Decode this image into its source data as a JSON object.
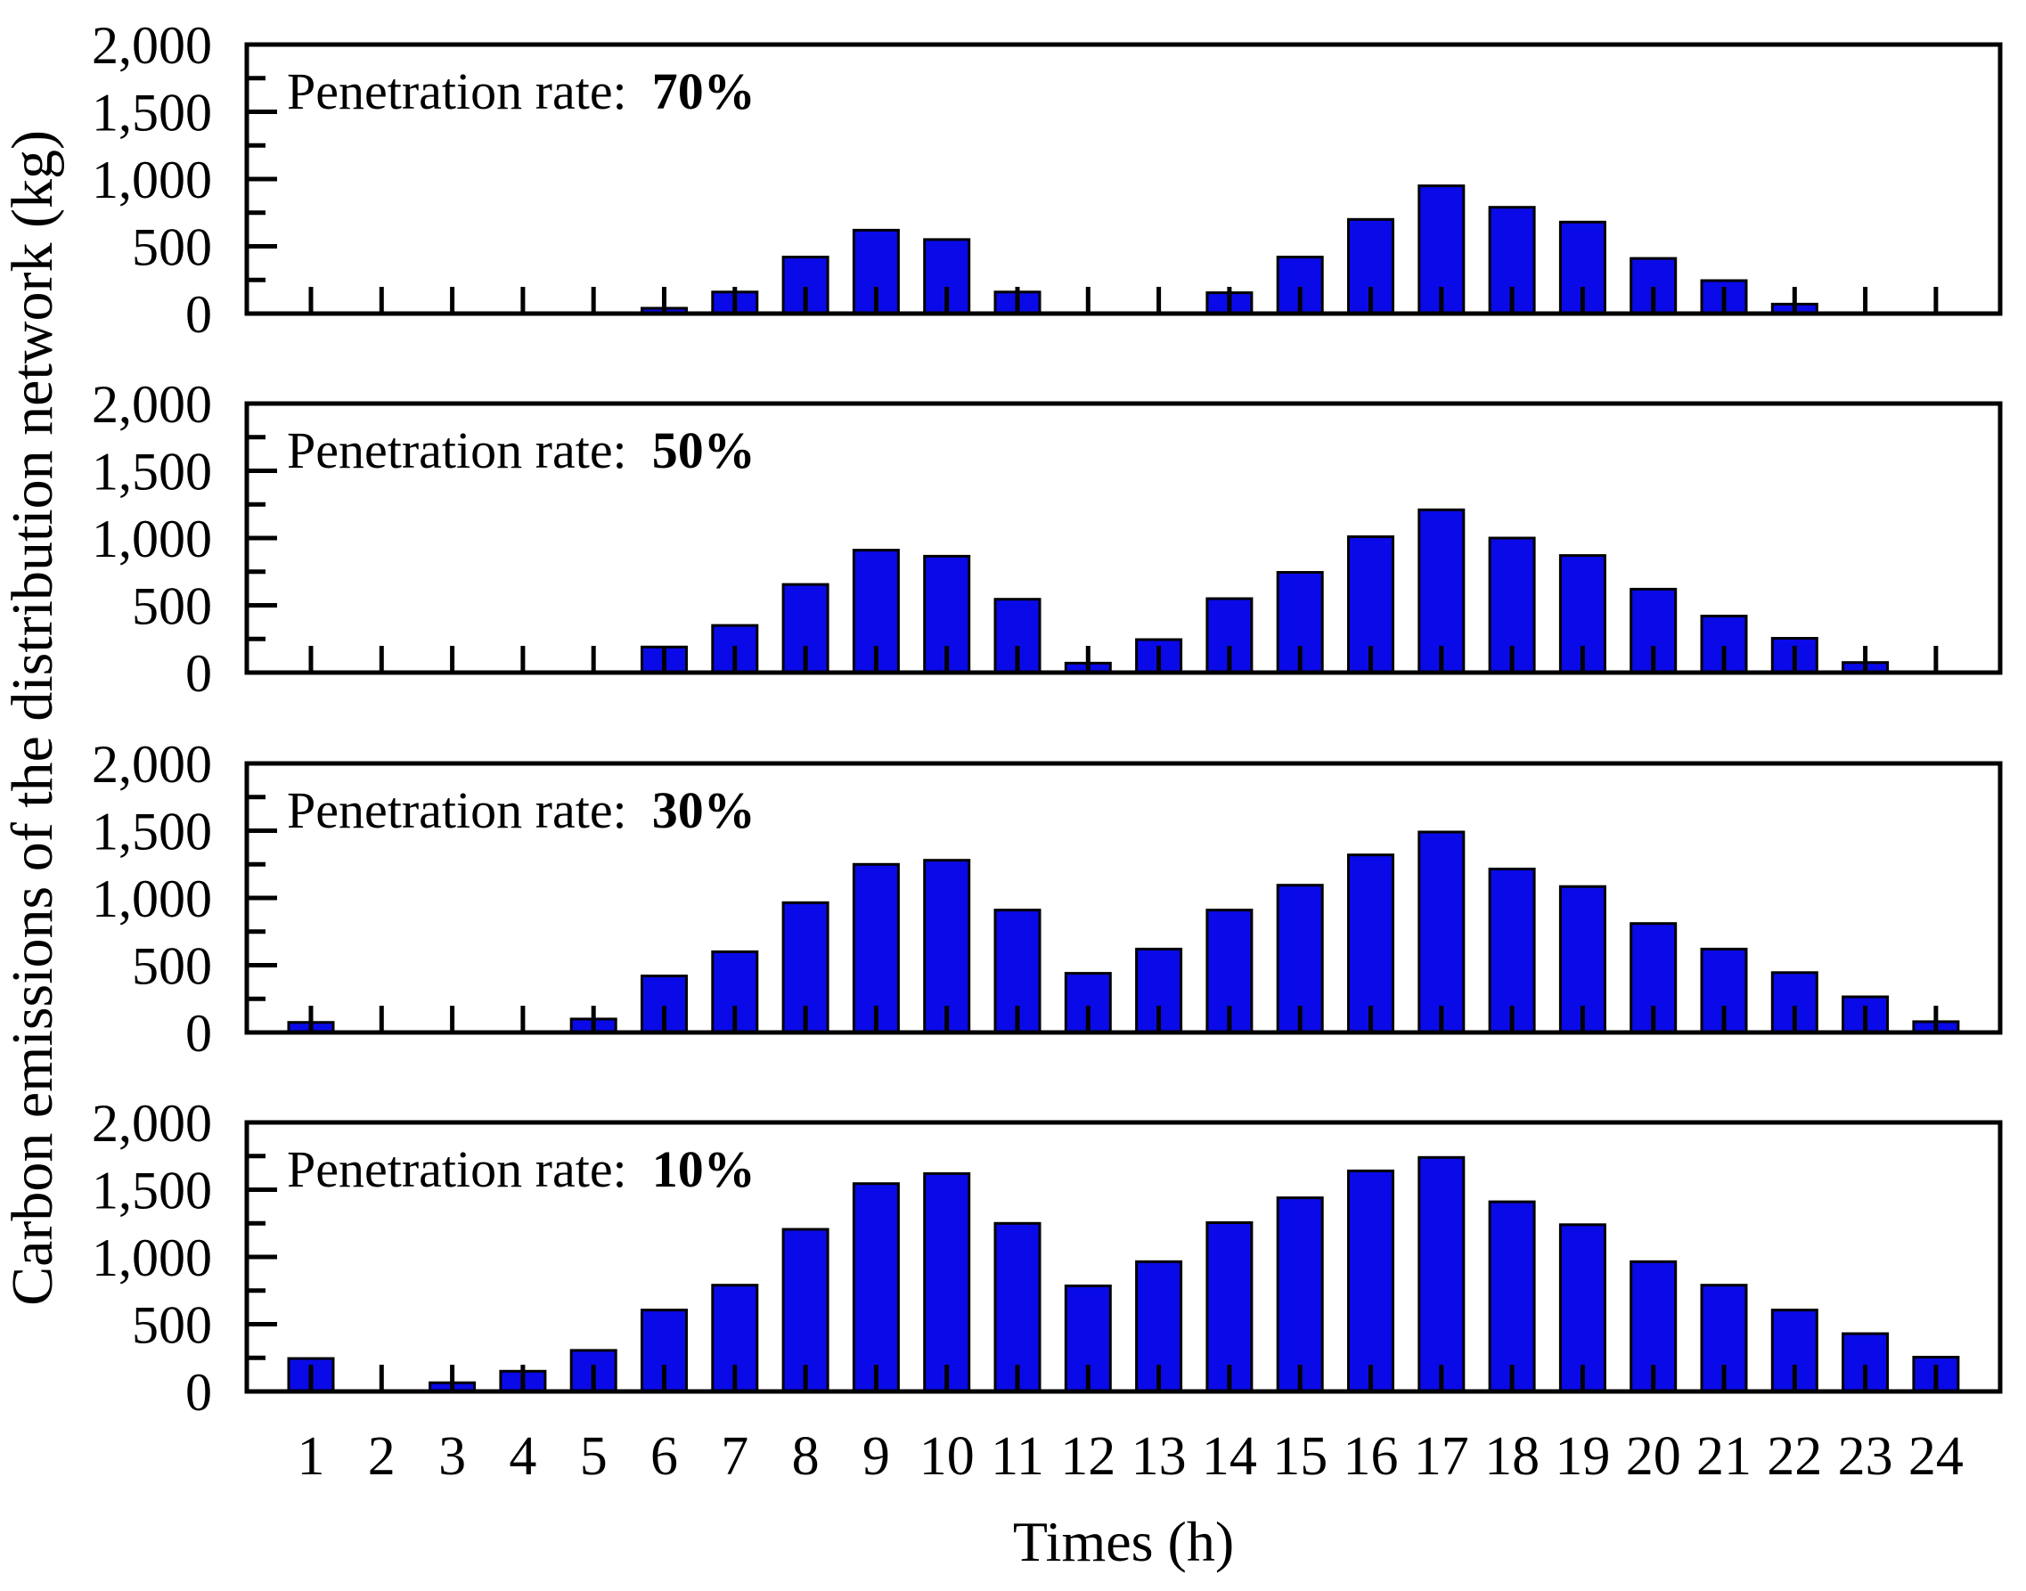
{
  "figure": {
    "y_axis_title": "Carbon emissions of the distribution network (kg)",
    "x_axis_title": "Times (h)",
    "annotation_prefix": "Penetration rate:",
    "bar_color": "#0a0ae8",
    "bar_edge_color": "#000000",
    "axis_color": "#000000",
    "y_tick_labels": [
      "0",
      "500",
      "1,000",
      "1,500",
      "2,000"
    ]
  },
  "chart_data": [
    {
      "type": "bar",
      "annotation_value": "70%",
      "categories": [
        1,
        2,
        3,
        4,
        5,
        6,
        7,
        8,
        9,
        10,
        11,
        12,
        13,
        14,
        15,
        16,
        17,
        18,
        19,
        20,
        21,
        22,
        23,
        24
      ],
      "values": [
        0,
        0,
        0,
        0,
        0,
        40,
        160,
        420,
        620,
        550,
        160,
        0,
        0,
        155,
        420,
        700,
        950,
        790,
        680,
        410,
        245,
        70,
        0,
        0
      ],
      "title": "Penetration rate: 70%",
      "xlabel": "Times (h)",
      "ylabel": "Carbon emissions of the distribution network (kg)",
      "ylim": [
        0,
        2000
      ],
      "yticks": [
        0,
        500,
        1000,
        1500,
        2000
      ],
      "minor_yticks": [
        250,
        750,
        1250,
        1750
      ],
      "grid": false,
      "legend": null
    },
    {
      "type": "bar",
      "annotation_value": "50%",
      "categories": [
        1,
        2,
        3,
        4,
        5,
        6,
        7,
        8,
        9,
        10,
        11,
        12,
        13,
        14,
        15,
        16,
        17,
        18,
        19,
        20,
        21,
        22,
        23,
        24
      ],
      "values": [
        0,
        0,
        0,
        0,
        0,
        190,
        350,
        655,
        910,
        865,
        545,
        70,
        245,
        550,
        745,
        1010,
        1210,
        1000,
        870,
        620,
        420,
        255,
        75,
        0
      ],
      "title": "Penetration rate: 50%",
      "xlabel": "Times (h)",
      "ylabel": "Carbon emissions of the distribution network (kg)",
      "ylim": [
        0,
        2000
      ],
      "yticks": [
        0,
        500,
        1000,
        1500,
        2000
      ],
      "minor_yticks": [
        250,
        750,
        1250,
        1750
      ],
      "grid": false,
      "legend": null
    },
    {
      "type": "bar",
      "annotation_value": "30%",
      "categories": [
        1,
        2,
        3,
        4,
        5,
        6,
        7,
        8,
        9,
        10,
        11,
        12,
        13,
        14,
        15,
        16,
        17,
        18,
        19,
        20,
        21,
        22,
        23,
        24
      ],
      "values": [
        75,
        0,
        0,
        0,
        100,
        420,
        600,
        965,
        1250,
        1280,
        910,
        440,
        620,
        910,
        1095,
        1320,
        1490,
        1215,
        1085,
        810,
        620,
        445,
        265,
        80
      ],
      "title": "Penetration rate: 30%",
      "xlabel": "Times (h)",
      "ylabel": "Carbon emissions of the distribution network (kg)",
      "ylim": [
        0,
        2000
      ],
      "yticks": [
        0,
        500,
        1000,
        1500,
        2000
      ],
      "minor_yticks": [
        250,
        750,
        1250,
        1750
      ],
      "grid": false,
      "legend": null
    },
    {
      "type": "bar",
      "annotation_value": "10%",
      "categories": [
        1,
        2,
        3,
        4,
        5,
        6,
        7,
        8,
        9,
        10,
        11,
        12,
        13,
        14,
        15,
        16,
        17,
        18,
        19,
        20,
        21,
        22,
        23,
        24
      ],
      "values": [
        245,
        0,
        65,
        150,
        305,
        605,
        790,
        1205,
        1545,
        1620,
        1250,
        785,
        965,
        1255,
        1440,
        1640,
        1740,
        1410,
        1240,
        965,
        790,
        605,
        430,
        255
      ],
      "title": "Penetration rate: 10%",
      "xlabel": "Times (h)",
      "ylabel": "Carbon emissions of the distribution network (kg)",
      "ylim": [
        0,
        2000
      ],
      "yticks": [
        0,
        500,
        1000,
        1500,
        2000
      ],
      "minor_yticks": [
        250,
        750,
        1250,
        1750
      ],
      "grid": false,
      "legend": null
    }
  ]
}
